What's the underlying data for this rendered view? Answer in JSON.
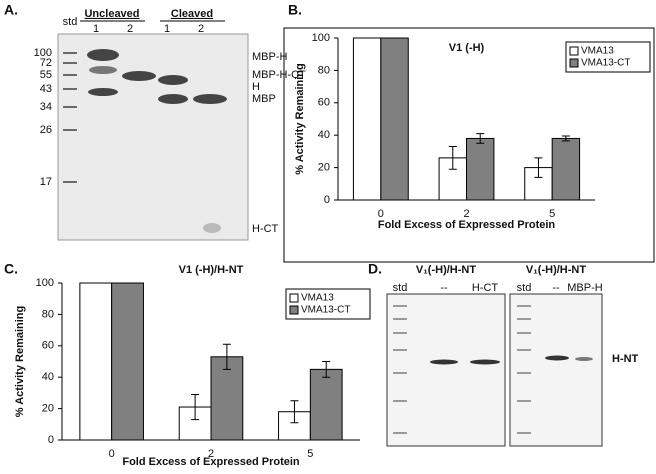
{
  "panel_labels": [
    "A.",
    "B.",
    "C.",
    "D."
  ],
  "gel_a": {
    "std": "std",
    "groups": [
      "Uncleaved",
      "Cleaved"
    ],
    "lanes": [
      "1",
      "2",
      "1",
      "2"
    ],
    "markers": [
      "100",
      "72",
      "55",
      "43",
      "34",
      "26",
      "17"
    ],
    "bands": [
      "MBP-H",
      "MBP-H-CT",
      "H",
      "MBP",
      "H-CT"
    ]
  },
  "chart_data": [
    {
      "type": "bar",
      "title": "V1 (-H)",
      "xlabel": "Fold Excess of Expressed Protein",
      "ylabel": "% Activity Remaining",
      "categories": [
        "0",
        "2",
        "5"
      ],
      "series": [
        {
          "name": "VMA13",
          "color": "#ffffff",
          "values": [
            100,
            26,
            20
          ],
          "errors": [
            0,
            7,
            6
          ]
        },
        {
          "name": "VMA13-CT",
          "color": "#808080",
          "values": [
            100,
            38,
            38
          ],
          "errors": [
            0,
            3,
            1.5
          ]
        }
      ],
      "ylim": [
        0,
        100
      ],
      "yticks": [
        0,
        20,
        40,
        60,
        80,
        100
      ],
      "legend": "upper right"
    },
    {
      "type": "bar",
      "title": "V1 (-H)/H-NT",
      "xlabel": "Fold Excess of Expressed Protein",
      "ylabel": "% Activity Remaining",
      "categories": [
        "0",
        "2",
        "5"
      ],
      "series": [
        {
          "name": "VMA13",
          "color": "#ffffff",
          "values": [
            100,
            21,
            18
          ],
          "errors": [
            0,
            8,
            7
          ]
        },
        {
          "name": "VMA13-CT",
          "color": "#808080",
          "values": [
            100,
            53,
            45
          ],
          "errors": [
            0,
            8,
            5
          ]
        }
      ],
      "ylim": [
        0,
        100
      ],
      "yticks": [
        0,
        20,
        40,
        60,
        80,
        100
      ],
      "legend": "upper right"
    }
  ],
  "gel_d": [
    {
      "title": "V₁(-H)/H-NT",
      "lanes": [
        "std",
        "--",
        "H-CT"
      ]
    },
    {
      "title": "V₁(-H)/H-NT",
      "lanes": [
        "std",
        "--",
        "MBP-H"
      ]
    }
  ],
  "gel_d_band": "H-NT"
}
